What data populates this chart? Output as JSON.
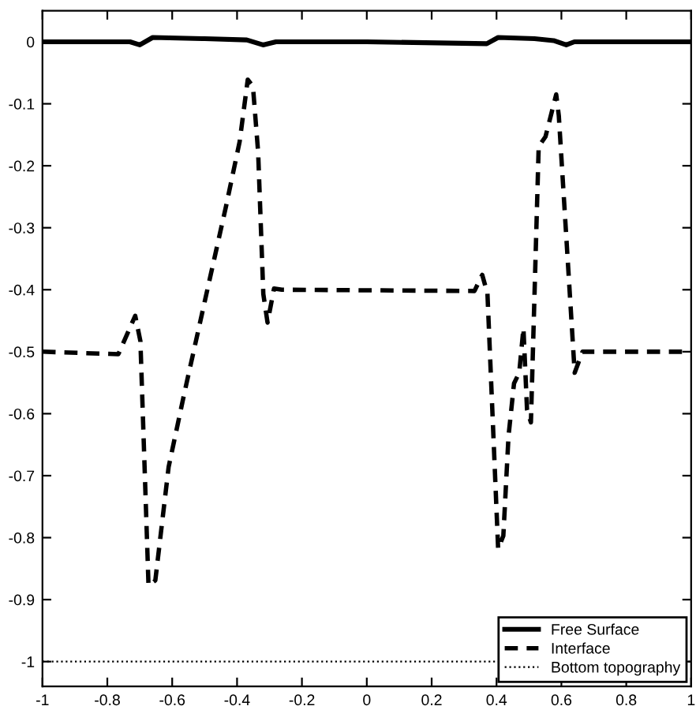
{
  "chart_data": {
    "type": "line",
    "series": [
      {
        "name": "Free Surface",
        "color": "#000000",
        "line_style": "solid",
        "x": [
          -1,
          -0.73,
          -0.7,
          -0.66,
          -0.5,
          -0.37,
          -0.32,
          -0.28,
          0.0,
          0.37,
          0.405,
          0.517,
          0.576,
          0.615,
          0.64,
          1
        ],
        "values": [
          0,
          0,
          -0.005,
          0.007,
          0.005,
          0.003,
          -0.005,
          0,
          0,
          -0.003,
          0.007,
          0.005,
          0.002,
          -0.005,
          0,
          0
        ]
      },
      {
        "name": "Interface",
        "color": "#000000",
        "line_style": "dashed",
        "x": [
          -1,
          -0.766,
          -0.714,
          -0.698,
          -0.673,
          -0.652,
          -0.611,
          -0.563,
          -0.498,
          -0.433,
          -0.392,
          -0.367,
          -0.351,
          -0.335,
          -0.319,
          -0.306,
          -0.286,
          -0.262,
          0.332,
          0.356,
          0.372,
          0.405,
          0.421,
          0.437,
          0.454,
          0.47,
          0.483,
          0.494,
          0.506,
          0.53,
          0.551,
          0.584,
          0.592,
          0.641,
          0.665,
          1
        ],
        "values": [
          -0.5,
          -0.504,
          -0.442,
          -0.483,
          -0.877,
          -0.869,
          -0.686,
          -0.568,
          -0.415,
          -0.263,
          -0.161,
          -0.061,
          -0.072,
          -0.178,
          -0.407,
          -0.453,
          -0.398,
          -0.4,
          -0.402,
          -0.376,
          -0.406,
          -0.818,
          -0.797,
          -0.636,
          -0.551,
          -0.534,
          -0.462,
          -0.593,
          -0.614,
          -0.169,
          -0.153,
          -0.085,
          -0.119,
          -0.534,
          -0.5,
          -0.5
        ]
      },
      {
        "name": "Bottom topography",
        "color": "#000000",
        "line_style": "dotted",
        "x": [
          -1,
          1
        ],
        "values": [
          -1,
          -1
        ]
      }
    ],
    "xlim": [
      -1,
      1
    ],
    "ylim": [
      -1.04,
      0.05
    ],
    "xticks": [
      -1,
      -0.8,
      -0.6,
      -0.4,
      -0.2,
      0,
      0.2,
      0.4,
      0.6,
      0.8,
      1
    ],
    "yticks": [
      -1,
      -0.9,
      -0.8,
      -0.7,
      -0.6,
      -0.5,
      -0.4,
      -0.3,
      -0.2,
      -0.1,
      0
    ],
    "legend": "bottom right",
    "grid": false
  }
}
